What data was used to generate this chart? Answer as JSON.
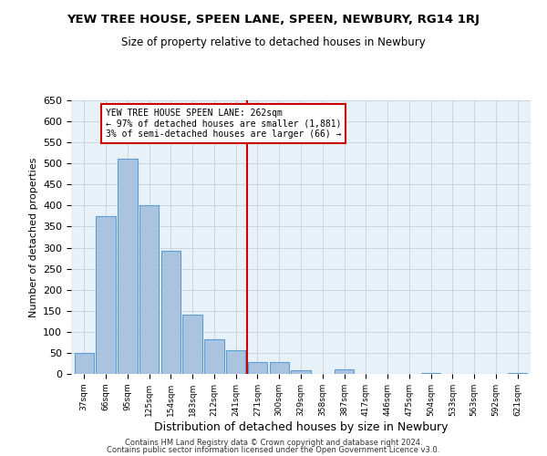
{
  "title": "YEW TREE HOUSE, SPEEN LANE, SPEEN, NEWBURY, RG14 1RJ",
  "subtitle": "Size of property relative to detached houses in Newbury",
  "xlabel": "Distribution of detached houses by size in Newbury",
  "ylabel": "Number of detached properties",
  "bar_color": "#aac4e0",
  "bar_edge_color": "#5a9fd4",
  "background_color": "#e8f0f8",
  "grid_color": "#c0ccd8",
  "categories": [
    "37sqm",
    "66sqm",
    "95sqm",
    "125sqm",
    "154sqm",
    "183sqm",
    "212sqm",
    "241sqm",
    "271sqm",
    "300sqm",
    "329sqm",
    "358sqm",
    "387sqm",
    "417sqm",
    "446sqm",
    "475sqm",
    "504sqm",
    "533sqm",
    "563sqm",
    "592sqm",
    "621sqm"
  ],
  "values": [
    50,
    375,
    512,
    400,
    293,
    140,
    82,
    57,
    28,
    28,
    9,
    0,
    11,
    0,
    0,
    0,
    2,
    0,
    0,
    0,
    2
  ],
  "ylim": [
    0,
    650
  ],
  "yticks": [
    0,
    50,
    100,
    150,
    200,
    250,
    300,
    350,
    400,
    450,
    500,
    550,
    600,
    650
  ],
  "vline_idx": 8,
  "vline_color": "#cc0000",
  "ann_line1": "YEW TREE HOUSE SPEEN LANE: 262sqm",
  "ann_line2": "← 97% of detached houses are smaller (1,881)",
  "ann_line3": "3% of semi-detached houses are larger (66) →",
  "footer1": "Contains HM Land Registry data © Crown copyright and database right 2024.",
  "footer2": "Contains public sector information licensed under the Open Government Licence v3.0."
}
